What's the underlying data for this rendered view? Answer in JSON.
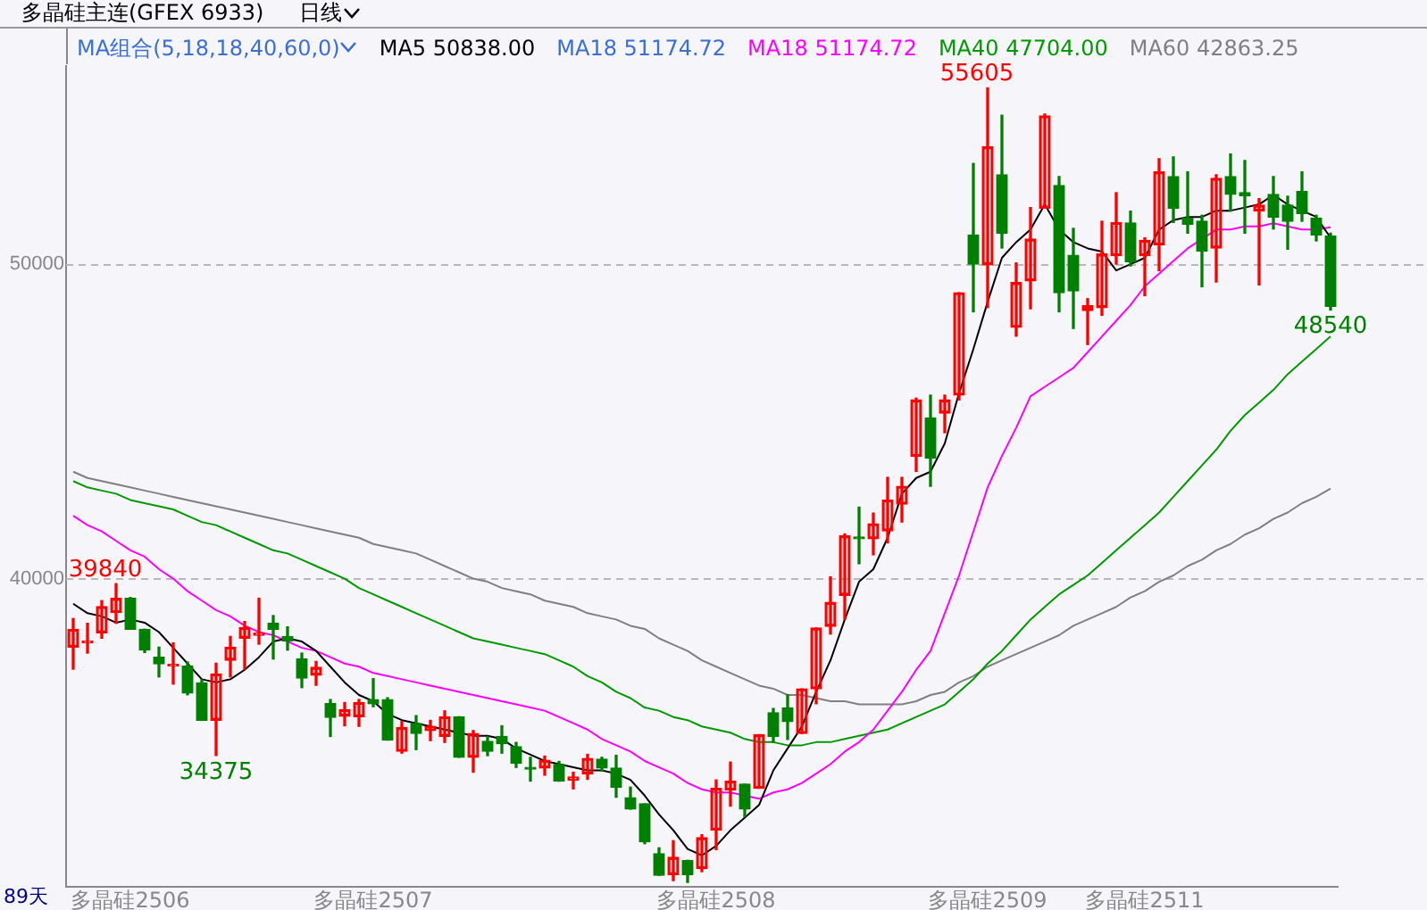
{
  "chart_data": {
    "type": "candlestick",
    "title": "多晶硅主连(GFEX 6933)",
    "subtitle": "日线",
    "categories": [
      null,
      null,
      null,
      null,
      "多晶硅2506",
      null,
      null,
      null,
      null,
      null,
      null,
      null,
      null,
      null,
      null,
      null,
      null,
      null,
      null,
      null,
      null,
      "多晶硅2507",
      null,
      null,
      null,
      null,
      null,
      null,
      null,
      null,
      null,
      null,
      null,
      null,
      null,
      null,
      null,
      null,
      null,
      null,
      null,
      null,
      null,
      null,
      null,
      "多晶硅2508",
      null,
      null,
      null,
      null,
      null,
      null,
      null,
      null,
      null,
      null,
      null,
      null,
      null,
      null,
      null,
      null,
      null,
      null,
      "多晶硅2509",
      null,
      null,
      null,
      null,
      null,
      null,
      null,
      null,
      null,
      null,
      "多晶硅2511",
      null,
      null,
      null,
      null,
      null,
      null,
      null,
      null,
      null,
      null,
      null,
      null,
      null
    ],
    "ohlc": [
      [
        37821,
        38731,
        37121,
        38390
      ],
      [
        37960,
        38579,
        37632,
        38011
      ],
      [
        38276,
        39300,
        38106,
        39110
      ],
      [
        38920,
        39840,
        38579,
        39375
      ],
      [
        39375,
        39400,
        38390,
        38390
      ],
      [
        38390,
        38390,
        37650,
        37727
      ],
      [
        37500,
        37821,
        36874,
        37290
      ],
      [
        37220,
        37954,
        36647,
        37253
      ],
      [
        37215,
        37348,
        36306,
        36363
      ],
      [
        36685,
        36780,
        35492,
        35492
      ],
      [
        35492,
        37310,
        34375,
        36969
      ],
      [
        37405,
        38162,
        36874,
        37821
      ],
      [
        38106,
        38636,
        37121,
        38446
      ],
      [
        38200,
        39375,
        37916,
        38276
      ],
      [
        38579,
        38825,
        37443,
        38390
      ],
      [
        38162,
        38465,
        37727,
        38011
      ],
      [
        37443,
        37632,
        36534,
        36837
      ],
      [
        36931,
        37367,
        36609,
        37178
      ],
      [
        36022,
        36155,
        34980,
        35587
      ],
      [
        35625,
        36060,
        35321,
        35833
      ],
      [
        35606,
        36155,
        35303,
        36060
      ],
      [
        36155,
        36818,
        35927,
        36022
      ],
      [
        36155,
        36212,
        34866,
        34866
      ],
      [
        34507,
        35454,
        34450,
        35265
      ],
      [
        35397,
        35643,
        34563,
        35075
      ],
      [
        35170,
        35492,
        34848,
        35302
      ],
      [
        34980,
        35795,
        34791,
        35606
      ],
      [
        35606,
        35606,
        34318,
        34318
      ],
      [
        34318,
        35170,
        33844,
        35075
      ],
      [
        34829,
        34980,
        34370,
        34507
      ],
      [
        34980,
        35321,
        34450,
        34753
      ],
      [
        34658,
        34791,
        33996,
        34128
      ],
      [
        33996,
        34318,
        33560,
        33939
      ],
      [
        33977,
        34356,
        33749,
        34223
      ],
      [
        34091,
        34185,
        33560,
        33560
      ],
      [
        33598,
        33844,
        33314,
        33693
      ],
      [
        33787,
        34412,
        33617,
        34280
      ],
      [
        34261,
        34318,
        33882,
        33977
      ],
      [
        33977,
        34380,
        33049,
        33371
      ],
      [
        33030,
        33371,
        32670,
        32670
      ],
      [
        32840,
        32840,
        31571,
        31628
      ],
      [
        31249,
        31439,
        30567,
        30567
      ],
      [
        30586,
        31666,
        30397,
        31136
      ],
      [
        31041,
        31041,
        30340,
        30586
      ],
      [
        30776,
        31855,
        30681,
        31761
      ],
      [
        32007,
        33598,
        31382,
        33333
      ],
      [
        33276,
        34166,
        32765,
        33560
      ],
      [
        33465,
        33465,
        32424,
        32670
      ],
      [
        33333,
        35037,
        33333,
        35037
      ],
      [
        35738,
        35871,
        34791,
        34980
      ],
      [
        35889,
        36306,
        34886,
        35454
      ],
      [
        35075,
        36496,
        35075,
        36496
      ],
      [
        36496,
        38428,
        36022,
        38428
      ],
      [
        38484,
        40056,
        38238,
        39242
      ],
      [
        39469,
        41420,
        38711,
        41363
      ],
      [
        41326,
        42273,
        40474,
        41269
      ],
      [
        41269,
        42084,
        40758,
        41743
      ],
      [
        41515,
        43220,
        41137,
        42500
      ],
      [
        42367,
        43220,
        41799,
        42936
      ],
      [
        43883,
        45739,
        43409,
        45682
      ],
      [
        45114,
        45834,
        42936,
        43826
      ],
      [
        45265,
        45834,
        44640,
        45682
      ],
      [
        45834,
        49091,
        45682,
        49091
      ],
      [
        50928,
        53201,
        48485,
        49996
      ],
      [
        49981,
        55605,
        48618,
        53732
      ],
      [
        52842,
        54735,
        50512,
        50985
      ],
      [
        47993,
        50038,
        47709,
        49413
      ],
      [
        49470,
        51800,
        48580,
        50796
      ],
      [
        51781,
        54773,
        51781,
        54716
      ],
      [
        52500,
        52785,
        48485,
        49091
      ],
      [
        50284,
        51137,
        47955,
        49148
      ],
      [
        48523,
        48902,
        47444,
        48675
      ],
      [
        48618,
        51364,
        48372,
        50322
      ],
      [
        50266,
        52273,
        50000,
        51326
      ],
      [
        51307,
        51686,
        49944,
        50076
      ],
      [
        50266,
        50834,
        48996,
        50758
      ],
      [
        50606,
        53353,
        49792,
        52936
      ],
      [
        52785,
        53410,
        51326,
        51781
      ],
      [
        51459,
        52936,
        50985,
        51269
      ],
      [
        51364,
        51554,
        49281,
        50417
      ],
      [
        50512,
        52842,
        49432,
        52728
      ],
      [
        52785,
        53504,
        51686,
        52216
      ],
      [
        52273,
        53296,
        50985,
        52178
      ],
      [
        51686,
        52084,
        49338,
        51875
      ],
      [
        52216,
        52785,
        51118,
        51497
      ],
      [
        51875,
        52160,
        50474,
        51364
      ],
      [
        52311,
        52936,
        51364,
        51610
      ],
      [
        51459,
        51554,
        50739,
        50928
      ],
      [
        50890,
        50985,
        48540,
        48656
      ]
    ],
    "colors": [
      "#ff0000",
      "#ff0000",
      "#ff0000",
      "#ff0000",
      "#008000",
      "#008000",
      "#008000",
      "#ff0000",
      "#008000",
      "#008000",
      "#ff0000",
      "#ff0000",
      "#ff0000",
      "#ff0000",
      "#008000",
      "#008000",
      "#008000",
      "#ff0000",
      "#008000",
      "#ff0000",
      "#ff0000",
      "#008000",
      "#008000",
      "#ff0000",
      "#008000",
      "#ff0000",
      "#ff0000",
      "#008000",
      "#ff0000",
      "#008000",
      "#008000",
      "#008000",
      "#008000",
      "#ff0000",
      "#008000",
      "#ff0000",
      "#ff0000",
      "#008000",
      "#008000",
      "#008000",
      "#008000",
      "#008000",
      "#ff0000",
      "#008000",
      "#ff0000",
      "#ff0000",
      "#ff0000",
      "#008000",
      "#ff0000",
      "#008000",
      "#008000",
      "#ff0000",
      "#ff0000",
      "#ff0000",
      "#ff0000",
      "#008000",
      "#ff0000",
      "#ff0000",
      "#ff0000",
      "#ff0000",
      "#008000",
      "#ff0000",
      "#ff0000",
      "#008000",
      "#ff0000",
      "#008000",
      "#ff0000",
      "#ff0000",
      "#ff0000",
      "#008000",
      "#008000",
      "#ff0000",
      "#ff0000",
      "#ff0000",
      "#008000",
      "#ff0000",
      "#ff0000",
      "#008000",
      "#008000",
      "#008000",
      "#ff0000",
      "#008000",
      "#008000",
      "#ff0000",
      "#008000",
      "#008000",
      "#008000",
      "#008000",
      "#008000"
    ],
    "series": [
      {
        "type": "line",
        "name": "MA5 50838.00",
        "color": "#000000",
        "values": [
          39200,
          38900,
          38800,
          38600,
          38700,
          38600,
          38300,
          37800,
          37300,
          36800,
          36700,
          36800,
          37100,
          37500,
          38000,
          38100,
          38000,
          37700,
          37200,
          36700,
          36300,
          36100,
          35700,
          35500,
          35400,
          35300,
          35200,
          35100,
          35000,
          35000,
          34900,
          34600,
          34400,
          34200,
          34100,
          34000,
          33900,
          33900,
          33800,
          33600,
          33100,
          32500,
          32000,
          31400,
          31200,
          31500,
          32000,
          32400,
          32800,
          33900,
          34600,
          35300,
          36400,
          37400,
          38700,
          39900,
          40300,
          41300,
          42700,
          43200,
          43400,
          44300,
          45900,
          47300,
          48800,
          50200,
          50700,
          51100,
          51900,
          51100,
          50700,
          50500,
          50400,
          49800,
          50000,
          50200,
          51100,
          51400,
          51500,
          51500,
          51700,
          51700,
          51800,
          51900,
          52200,
          51900,
          51700,
          51500,
          50838
        ]
      },
      {
        "type": "line",
        "name": "MA18 51174.72",
        "color": "#ff00ff",
        "values": [
          42000,
          41700,
          41500,
          41200,
          40900,
          40700,
          40300,
          40000,
          39600,
          39300,
          39000,
          38800,
          38500,
          38300,
          38200,
          38000,
          37800,
          37700,
          37500,
          37300,
          37200,
          37000,
          36900,
          36800,
          36700,
          36600,
          36500,
          36400,
          36300,
          36200,
          36100,
          36000,
          35900,
          35800,
          35600,
          35400,
          35200,
          34900,
          34700,
          34500,
          34200,
          34000,
          33800,
          33500,
          33300,
          33200,
          33200,
          33100,
          33000,
          33200,
          33300,
          33500,
          33800,
          34100,
          34500,
          34800,
          35200,
          35800,
          36400,
          37100,
          37700,
          38900,
          40100,
          41500,
          42900,
          43900,
          44800,
          45800,
          46100,
          46400,
          46700,
          47200,
          47700,
          48200,
          48700,
          49300,
          49700,
          50100,
          50500,
          50800,
          51100,
          51100,
          51200,
          51200,
          51300,
          51200,
          51100,
          51100,
          51174.72
        ]
      },
      {
        "type": "line",
        "name": "MA40 47704.00",
        "color": "#009900",
        "values": [
          43100,
          42900,
          42800,
          42700,
          42500,
          42400,
          42300,
          42200,
          42000,
          41800,
          41700,
          41500,
          41300,
          41100,
          40900,
          40800,
          40600,
          40400,
          40200,
          40000,
          39700,
          39500,
          39300,
          39100,
          38900,
          38700,
          38500,
          38300,
          38100,
          38000,
          37900,
          37800,
          37700,
          37600,
          37400,
          37200,
          36900,
          36700,
          36400,
          36200,
          35900,
          35800,
          35600,
          35500,
          35300,
          35200,
          35100,
          34900,
          34800,
          34800,
          34700,
          34700,
          34800,
          34800,
          34900,
          35000,
          35100,
          35200,
          35400,
          35600,
          35800,
          36000,
          36400,
          36800,
          37300,
          37700,
          38200,
          38700,
          39100,
          39500,
          39800,
          40100,
          40500,
          40900,
          41300,
          41700,
          42100,
          42600,
          43100,
          43600,
          44100,
          44700,
          45200,
          45600,
          46000,
          46500,
          46900,
          47300,
          47704
        ]
      },
      {
        "type": "line",
        "name": "MA60 42863.25",
        "color": "#808080",
        "values": [
          43400,
          43200,
          43100,
          43000,
          42900,
          42800,
          42700,
          42600,
          42500,
          42400,
          42300,
          42200,
          42100,
          42000,
          41900,
          41800,
          41700,
          41600,
          41500,
          41400,
          41300,
          41100,
          41000,
          40900,
          40800,
          40600,
          40400,
          40200,
          40000,
          39900,
          39700,
          39600,
          39500,
          39300,
          39200,
          39100,
          38900,
          38800,
          38700,
          38500,
          38400,
          38100,
          37900,
          37700,
          37400,
          37200,
          37000,
          36800,
          36600,
          36500,
          36300,
          36300,
          36200,
          36100,
          36100,
          36000,
          36000,
          36000,
          36000,
          36100,
          36300,
          36400,
          36700,
          36900,
          37200,
          37400,
          37600,
          37800,
          38000,
          38200,
          38500,
          38700,
          38900,
          39100,
          39400,
          39600,
          39900,
          40100,
          40400,
          40600,
          40900,
          41100,
          41400,
          41600,
          41900,
          42100,
          42400,
          42600,
          42863.25
        ]
      }
    ],
    "ylim": [
      30200,
      56300
    ],
    "yticks": [
      40000,
      50000
    ],
    "grid": "y",
    "legend": "top",
    "annotations": [
      "MA组合(5,18,18,40,60,0)",
      "MA18 51174.72",
      "39840",
      "34375",
      "55605",
      "48540",
      "89天"
    ]
  }
}
